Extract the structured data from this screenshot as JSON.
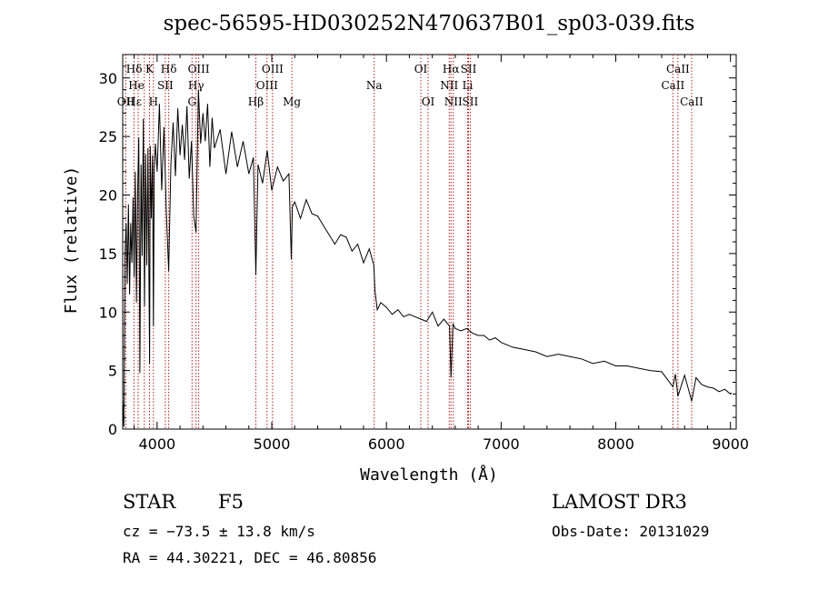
{
  "chart_data": {
    "type": "line",
    "title": "spec-56595-HD030252N470637B01_sp03-039.fits",
    "xlabel": "Wavelength (Å)",
    "ylabel": "Flux (relative)",
    "xlim": [
      3700,
      9050
    ],
    "ylim": [
      0,
      32
    ],
    "xticks": [
      4000,
      5000,
      6000,
      7000,
      8000,
      9000
    ],
    "yticks": [
      0,
      5,
      10,
      15,
      20,
      25,
      30
    ],
    "grid": false,
    "series": [
      {
        "name": "flux",
        "x": [
          3700,
          3710,
          3720,
          3730,
          3740,
          3750,
          3760,
          3770,
          3780,
          3790,
          3800,
          3810,
          3820,
          3830,
          3840,
          3850,
          3860,
          3870,
          3880,
          3890,
          3900,
          3910,
          3920,
          3930,
          3935,
          3940,
          3950,
          3960,
          3968,
          3975,
          3985,
          4000,
          4020,
          4040,
          4060,
          4080,
          4101,
          4120,
          4140,
          4160,
          4180,
          4200,
          4220,
          4240,
          4260,
          4280,
          4300,
          4320,
          4340,
          4360,
          4380,
          4400,
          4420,
          4440,
          4460,
          4480,
          4500,
          4550,
          4600,
          4650,
          4700,
          4750,
          4800,
          4840,
          4861,
          4880,
          4920,
          4960,
          5000,
          5050,
          5100,
          5150,
          5170,
          5180,
          5200,
          5250,
          5300,
          5350,
          5400,
          5450,
          5500,
          5550,
          5600,
          5650,
          5700,
          5750,
          5800,
          5850,
          5890,
          5900,
          5920,
          5950,
          6000,
          6050,
          6100,
          6150,
          6200,
          6250,
          6300,
          6350,
          6400,
          6450,
          6500,
          6550,
          6563,
          6580,
          6600,
          6650,
          6700,
          6750,
          6800,
          6850,
          6900,
          6950,
          7000,
          7100,
          7200,
          7300,
          7400,
          7500,
          7600,
          7700,
          7800,
          7900,
          8000,
          8100,
          8200,
          8300,
          8400,
          8498,
          8520,
          8542,
          8600,
          8662,
          8700,
          8750,
          8800,
          8850,
          8900,
          8950,
          9000,
          9010
        ],
        "values": [
          2.5,
          0.2,
          14.8,
          17.6,
          12.4,
          19.2,
          11.5,
          17.6,
          14.2,
          19.8,
          13.0,
          22.0,
          10.8,
          20.2,
          24.9,
          4.8,
          22.6,
          14.8,
          26.5,
          10.5,
          23.5,
          14.0,
          24.0,
          11.8,
          5.6,
          24.2,
          18.0,
          23.4,
          8.8,
          22.2,
          24.4,
          22.0,
          27.8,
          20.4,
          25.8,
          18.8,
          13.5,
          22.6,
          26.2,
          21.6,
          27.4,
          23.4,
          26.0,
          23.0,
          27.6,
          21.4,
          24.6,
          18.2,
          16.8,
          29.0,
          24.4,
          27.0,
          24.6,
          27.8,
          22.4,
          26.6,
          24.0,
          25.6,
          21.8,
          25.4,
          22.4,
          24.6,
          21.8,
          23.2,
          13.2,
          22.6,
          21.0,
          23.8,
          20.4,
          22.4,
          21.2,
          21.8,
          14.5,
          19.0,
          19.4,
          18.0,
          19.6,
          18.4,
          18.2,
          17.4,
          16.6,
          15.8,
          16.6,
          16.4,
          15.2,
          15.8,
          14.2,
          15.4,
          14.0,
          11.8,
          10.2,
          10.8,
          10.4,
          9.8,
          10.2,
          9.6,
          9.8,
          9.6,
          9.4,
          9.2,
          10.0,
          8.8,
          9.4,
          8.8,
          4.4,
          9.0,
          8.6,
          8.4,
          8.6,
          8.2,
          8.0,
          8.0,
          7.6,
          7.8,
          7.4,
          7.0,
          6.8,
          6.6,
          6.2,
          6.4,
          6.2,
          6.0,
          5.6,
          5.8,
          5.4,
          5.4,
          5.2,
          5.0,
          4.9,
          3.6,
          4.7,
          2.8,
          4.6,
          2.4,
          4.4,
          3.8,
          3.6,
          3.5,
          3.2,
          3.4,
          3.0,
          3.1
        ]
      }
    ],
    "annotations": [
      {
        "label": "Hδ",
        "x": 3800,
        "row": 1
      },
      {
        "label": "K",
        "x": 3934,
        "row": 1
      },
      {
        "label": "Hδ",
        "x": 4101,
        "row": 1
      },
      {
        "label": "OII",
        "x": 3727,
        "row": 3
      },
      {
        "label": "Hε",
        "x": 3800,
        "row": 3
      },
      {
        "label": "H",
        "x": 3968,
        "row": 3
      },
      {
        "label": "He",
        "x": 3820,
        "row": 2
      },
      {
        "label": "SII",
        "x": 4072,
        "row": 2
      },
      {
        "label": "OIII",
        "x": 4363,
        "row": 1
      },
      {
        "label": "Hγ",
        "x": 4340,
        "row": 2
      },
      {
        "label": "G",
        "x": 4305,
        "row": 3
      },
      {
        "label": "Hβ",
        "x": 4861,
        "row": 3
      },
      {
        "label": "OIII",
        "x": 5007,
        "row": 1
      },
      {
        "label": "OIII",
        "x": 4959,
        "row": 2
      },
      {
        "label": "Mg",
        "x": 5175,
        "row": 3
      },
      {
        "label": "Na",
        "x": 5893,
        "row": 2
      },
      {
        "label": "OI",
        "x": 6300,
        "row": 1
      },
      {
        "label": "OI",
        "x": 6363,
        "row": 3
      },
      {
        "label": "Hα",
        "x": 6563,
        "row": 1
      },
      {
        "label": "SII",
        "x": 6716,
        "row": 1
      },
      {
        "label": "NII",
        "x": 6548,
        "row": 2
      },
      {
        "label": "Li",
        "x": 6708,
        "row": 2
      },
      {
        "label": "NII",
        "x": 6583,
        "row": 3
      },
      {
        "label": "SII",
        "x": 6731,
        "row": 3
      },
      {
        "label": "CaII",
        "x": 8542,
        "row": 1
      },
      {
        "label": "CaII",
        "x": 8498,
        "row": 2
      },
      {
        "label": "CaII",
        "x": 8662,
        "row": 3
      }
    ],
    "line_markers": [
      3727,
      3798,
      3835,
      3889,
      3934,
      3968,
      4072,
      4101,
      4305,
      4340,
      4363,
      4861,
      4959,
      5007,
      5175,
      5893,
      6300,
      6363,
      6548,
      6563,
      6583,
      6708,
      6716,
      6731,
      8498,
      8542,
      8662
    ],
    "colors": {
      "line": "#000000",
      "marker": "#b22222"
    }
  },
  "info": {
    "object_class": "STAR",
    "subclass": "F5",
    "survey": "LAMOST DR3",
    "cz": "cz = −73.5 ± 13.8 km/s",
    "obs_date": "Obs-Date: 20131029",
    "coords": "RA =  44.30221, DEC =  46.80856"
  }
}
